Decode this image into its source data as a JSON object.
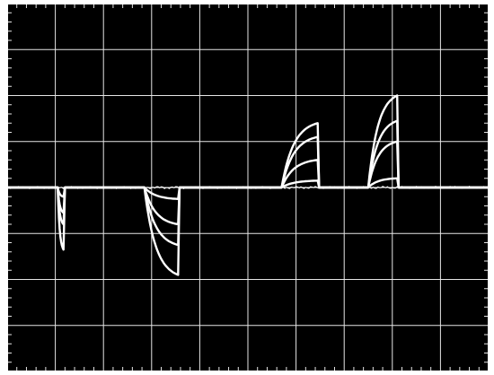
{
  "chart_data": {
    "type": "line",
    "title": "",
    "xlabel": "",
    "ylabel": "",
    "xlim": [
      0,
      10
    ],
    "ylim": [
      -4,
      4
    ],
    "grid": true,
    "grid_divisions": {
      "x": 10,
      "y": 8
    },
    "minor_ticks_per_division": 5,
    "colors": {
      "screen": "#000000",
      "grid": "#e6e6e6",
      "trace": "#ffffff",
      "border": "#ffffff"
    },
    "pulses": [
      {
        "name": "",
        "polarity": -1,
        "t_start": 1.05,
        "t_end": 1.17,
        "t_stop": 1.2,
        "t_drop": 1.35,
        "amplitudes": [
          0.2,
          0.55,
          0.8,
          1.35
        ]
      },
      {
        "name": "",
        "polarity": -1,
        "t_start": 2.85,
        "t_end": 3.55,
        "t_stop": 3.58,
        "t_drop": 3.73,
        "amplitudes": [
          0.25,
          0.8,
          1.25,
          1.9
        ]
      },
      {
        "name": "",
        "polarity": 1,
        "t_start": 5.7,
        "t_end": 6.45,
        "t_stop": 6.48,
        "t_drop": 6.63,
        "amplitudes": [
          0.15,
          0.6,
          1.1,
          1.4
        ]
      },
      {
        "name": "",
        "polarity": 1,
        "t_start": 7.5,
        "t_end": 8.1,
        "t_stop": 8.13,
        "t_drop": 8.28,
        "amplitudes": [
          0.2,
          1.0,
          1.45,
          2.0
        ]
      }
    ]
  }
}
